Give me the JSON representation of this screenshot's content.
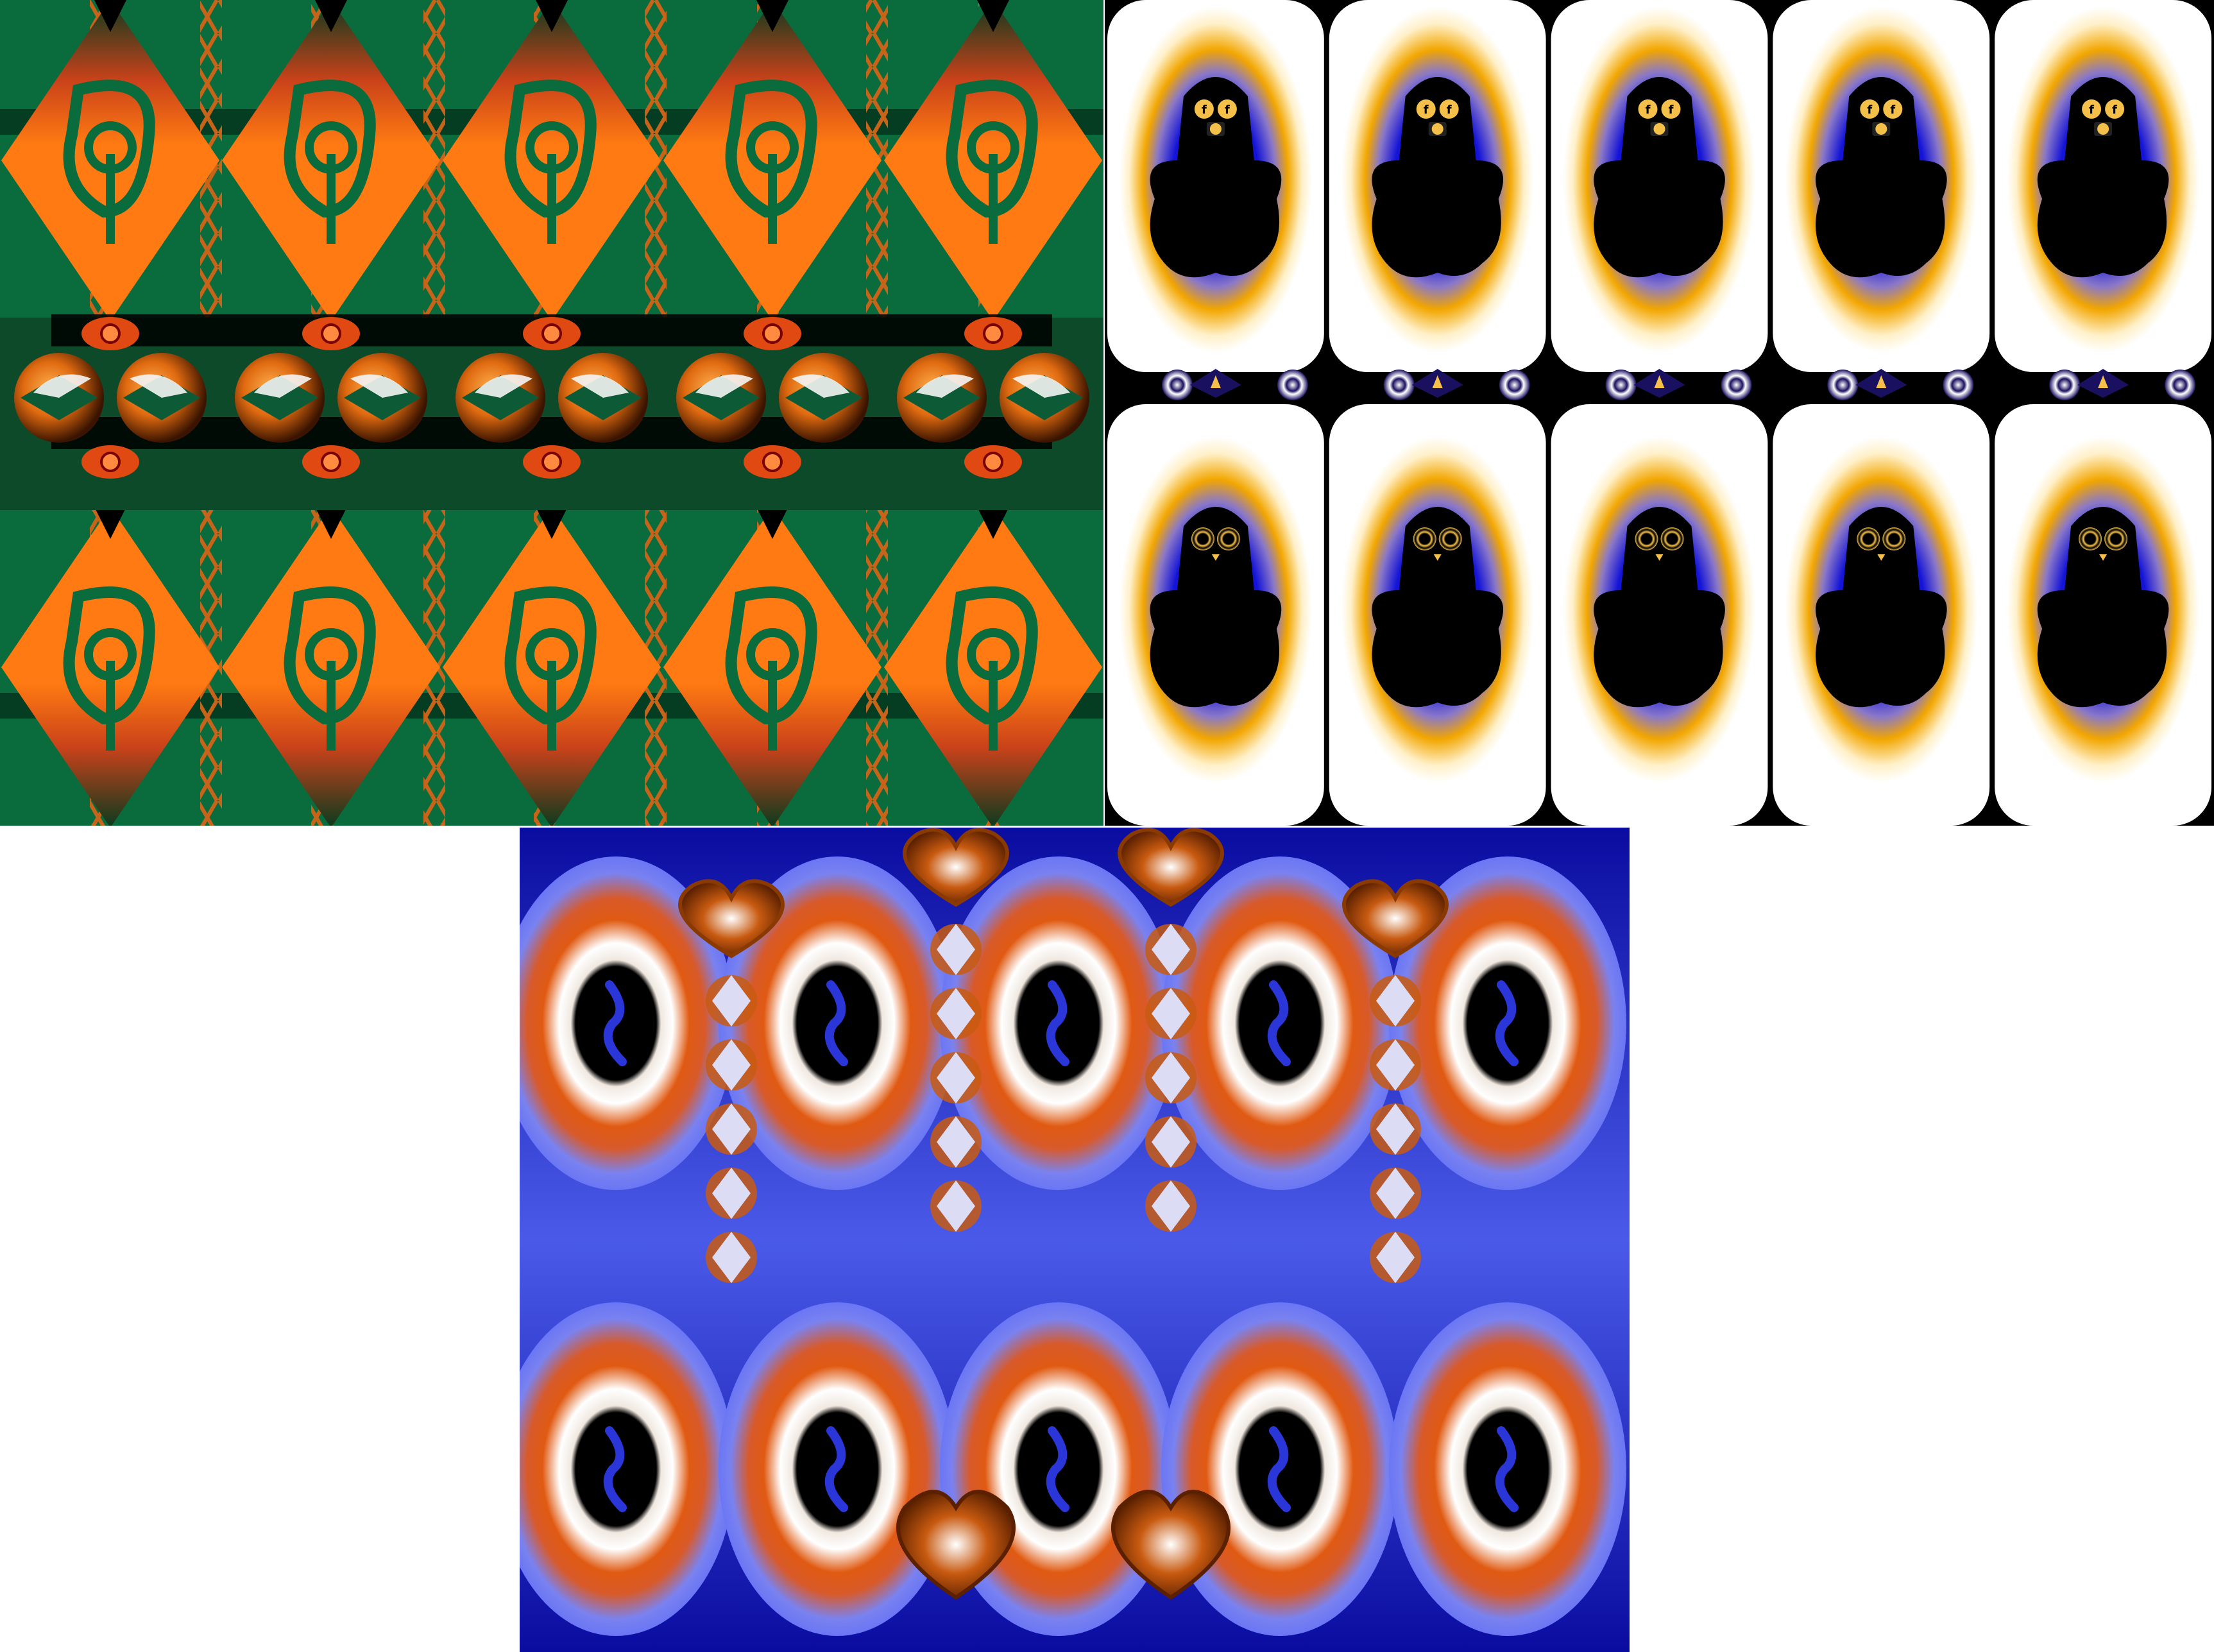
{
  "panels": [
    {
      "name": "orange-green-pattern",
      "colors": {
        "primary": "#ff7a12",
        "secondary": "#0a6b3c",
        "dark": "#000000",
        "accent": "#d43b00"
      }
    },
    {
      "name": "ghost-pattern",
      "colors": {
        "primary": "#1414d8",
        "glow": "#f2a600",
        "light": "#ffffff",
        "dark": "#000000"
      }
    },
    {
      "name": "blue-orange-pattern",
      "colors": {
        "primary": "#5a6cf4",
        "deep": "#0a0ca0",
        "ring": "#e05a12",
        "dark": "#000000",
        "light": "#ffffff"
      }
    }
  ]
}
